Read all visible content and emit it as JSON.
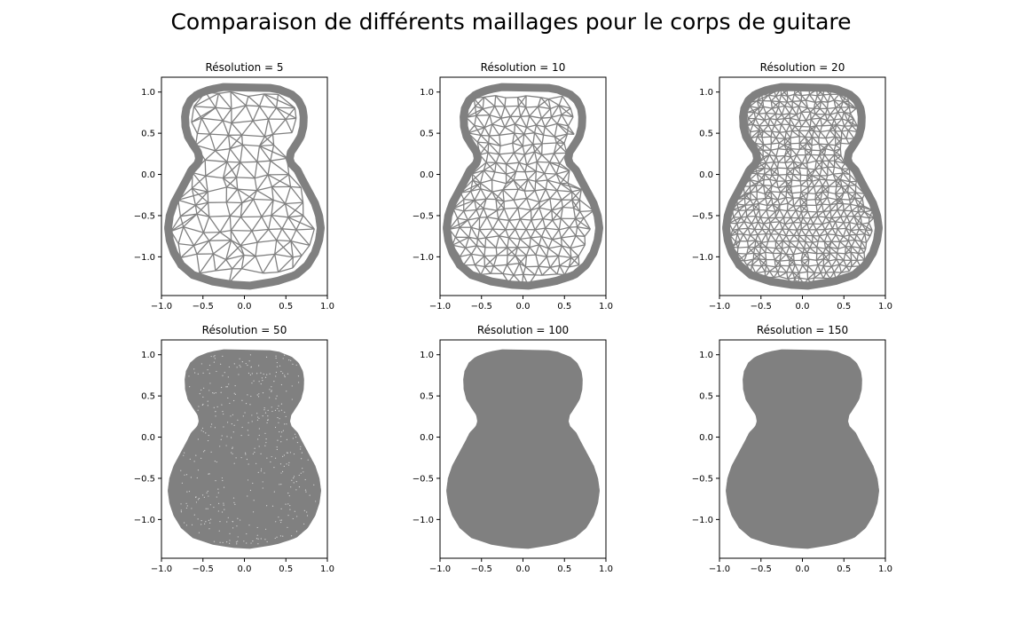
{
  "title": "Comparaison de différents maillages pour le corps de guitare",
  "mesh_color": "#808080",
  "chart_data": [
    {
      "type": "mesh",
      "title": "Résolution = 5",
      "resolution": 5,
      "xlim": [
        -1.0,
        1.0
      ],
      "ylim": [
        -1.47,
        1.18
      ],
      "xticks": [
        -1.0,
        -0.5,
        0.0,
        0.5,
        1.0
      ],
      "xtick_labels": [
        "−1.0",
        "−0.5",
        "0.0",
        "0.5",
        "1.0"
      ],
      "yticks": [
        1.0,
        0.5,
        0.0,
        -0.5,
        -1.0
      ],
      "ytick_labels": [
        "1.0",
        "0.5",
        "0.0",
        "−0.5",
        "−1.0"
      ]
    },
    {
      "type": "mesh",
      "title": "Résolution = 10",
      "resolution": 10,
      "xlim": [
        -1.0,
        1.0
      ],
      "ylim": [
        -1.47,
        1.18
      ],
      "xticks": [
        -1.0,
        -0.5,
        0.0,
        0.5,
        1.0
      ],
      "xtick_labels": [
        "−1.0",
        "−0.5",
        "0.0",
        "0.5",
        "1.0"
      ],
      "yticks": [
        1.0,
        0.5,
        0.0,
        -0.5,
        -1.0
      ],
      "ytick_labels": [
        "1.0",
        "0.5",
        "0.0",
        "−0.5",
        "−1.0"
      ]
    },
    {
      "type": "mesh",
      "title": "Résolution = 20",
      "resolution": 20,
      "xlim": [
        -1.0,
        1.0
      ],
      "ylim": [
        -1.47,
        1.18
      ],
      "xticks": [
        -1.0,
        -0.5,
        0.0,
        0.5,
        1.0
      ],
      "xtick_labels": [
        "−1.0",
        "−0.5",
        "0.0",
        "0.5",
        "1.0"
      ],
      "yticks": [
        1.0,
        0.5,
        0.0,
        -0.5,
        -1.0
      ],
      "ytick_labels": [
        "1.0",
        "0.5",
        "0.0",
        "−0.5",
        "−1.0"
      ]
    },
    {
      "type": "mesh",
      "title": "Résolution = 50",
      "resolution": 50,
      "xlim": [
        -1.0,
        1.0
      ],
      "ylim": [
        -1.47,
        1.18
      ],
      "xticks": [
        -1.0,
        -0.5,
        0.0,
        0.5,
        1.0
      ],
      "xtick_labels": [
        "−1.0",
        "−0.5",
        "0.0",
        "0.5",
        "1.0"
      ],
      "yticks": [
        1.0,
        0.5,
        0.0,
        -0.5,
        -1.0
      ],
      "ytick_labels": [
        "1.0",
        "0.5",
        "0.0",
        "−0.5",
        "−1.0"
      ]
    },
    {
      "type": "mesh",
      "title": "Résolution = 100",
      "resolution": 100,
      "xlim": [
        -1.0,
        1.0
      ],
      "ylim": [
        -1.47,
        1.18
      ],
      "xticks": [
        -1.0,
        -0.5,
        0.0,
        0.5,
        1.0
      ],
      "xtick_labels": [
        "−1.0",
        "−0.5",
        "0.0",
        "0.5",
        "1.0"
      ],
      "yticks": [
        1.0,
        0.5,
        0.0,
        -0.5,
        -1.0
      ],
      "ytick_labels": [
        "1.0",
        "0.5",
        "0.0",
        "−0.5",
        "−1.0"
      ]
    },
    {
      "type": "mesh",
      "title": "Résolution = 150",
      "resolution": 150,
      "xlim": [
        -1.0,
        1.0
      ],
      "ylim": [
        -1.47,
        1.18
      ],
      "xticks": [
        -1.0,
        -0.5,
        0.0,
        0.5,
        1.0
      ],
      "xtick_labels": [
        "−1.0",
        "−0.5",
        "0.0",
        "0.5",
        "1.0"
      ],
      "yticks": [
        1.0,
        0.5,
        0.0,
        -0.5,
        -1.0
      ],
      "ytick_labels": [
        "1.0",
        "0.5",
        "0.0",
        "−0.5",
        "−1.0"
      ]
    }
  ]
}
